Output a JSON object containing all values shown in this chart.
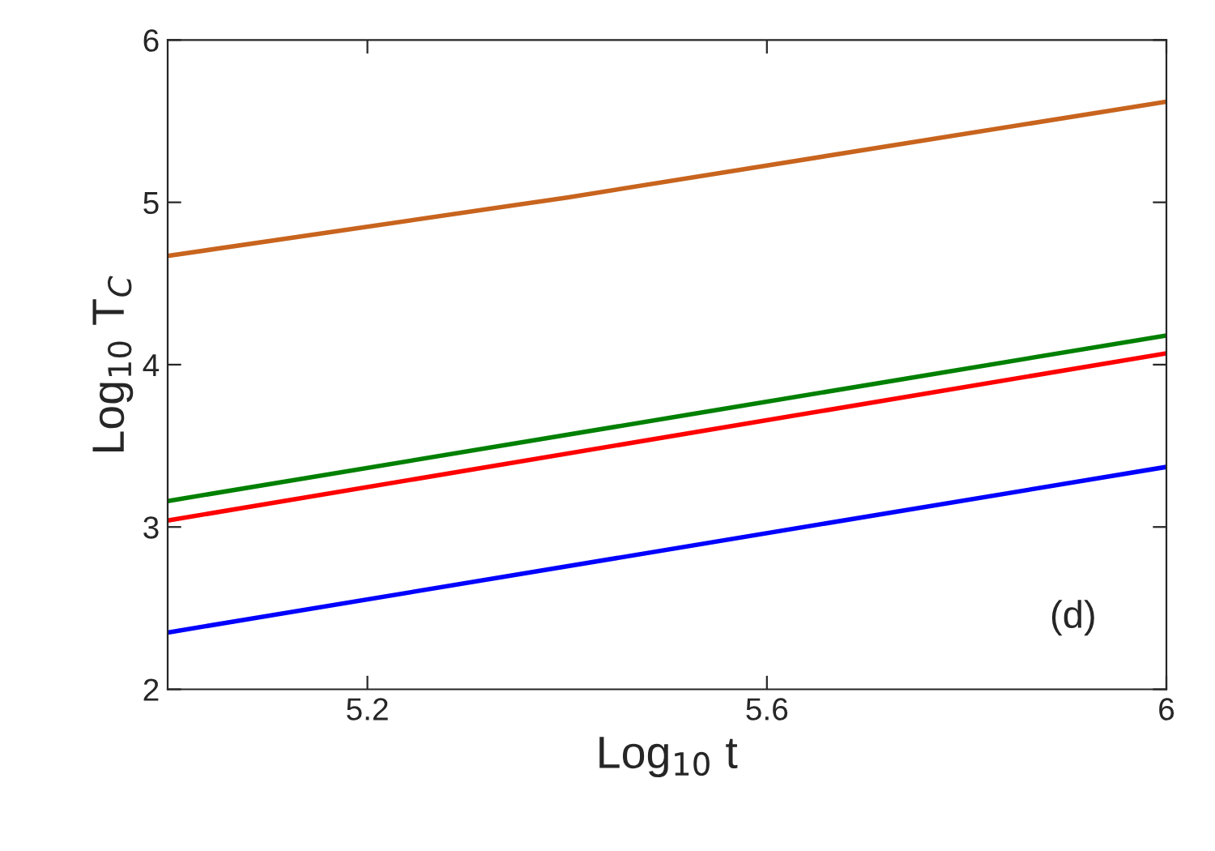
{
  "chart_data": {
    "type": "line",
    "xlabel": "Log$_{10}$ t",
    "ylabel": "Log$_{10}$ T$_{C}$",
    "xlim": [
      5,
      6
    ],
    "xticks": [
      5.2,
      5.6,
      6
    ],
    "ylim": [
      2,
      6
    ],
    "yticks": [
      2,
      3,
      4,
      5,
      6
    ],
    "series": [
      {
        "color": "#c8641e",
        "x": [
          5,
          5.4,
          6
        ],
        "values": [
          4.67,
          5.03,
          5.62
        ]
      },
      {
        "color": "#008000",
        "x": [
          5,
          6
        ],
        "values": [
          3.16,
          4.18
        ]
      },
      {
        "color": "#ff0000",
        "x": [
          5,
          6
        ],
        "values": [
          3.04,
          4.07
        ]
      },
      {
        "color": "#0000ff",
        "x": [
          5,
          6
        ],
        "values": [
          2.35,
          3.37
        ]
      }
    ],
    "annotations": [
      "(d)"
    ],
    "grid": false,
    "legend": false
  }
}
